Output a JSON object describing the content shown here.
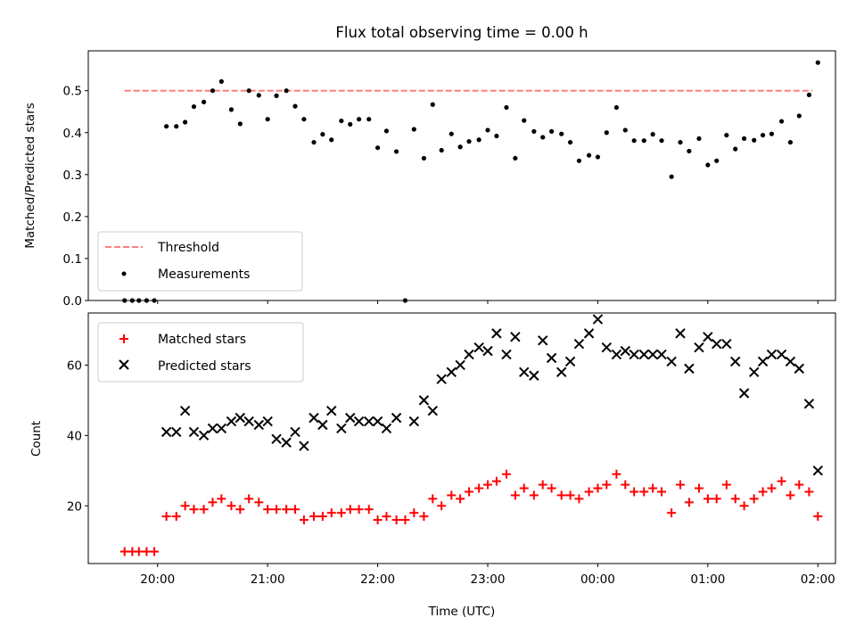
{
  "chart_data": [
    {
      "type": "scatter",
      "title": "Flux total observing time = 0.00 h",
      "xlabel": "",
      "ylabel": "Matched/Predicted stars",
      "ylim": [
        0,
        0.595
      ],
      "yticks": [
        0.0,
        0.1,
        0.2,
        0.3,
        0.4,
        0.5
      ],
      "ytick_labels": [
        "0.0",
        "0.1",
        "0.2",
        "0.3",
        "0.4",
        "0.5"
      ],
      "legend_position": "lower-left",
      "threshold": {
        "name": "Threshold",
        "value": 0.5,
        "x_start": 19.7,
        "x_end": 25.95,
        "color": "#ff7f7f"
      },
      "series": [
        {
          "name": "Measurements",
          "color": "#000000",
          "x": [
            19.7,
            19.77,
            19.83,
            19.9,
            19.97,
            20.08,
            20.17,
            20.25,
            20.33,
            20.42,
            20.5,
            20.58,
            20.67,
            20.75,
            20.83,
            20.92,
            21.0,
            21.08,
            21.17,
            21.25,
            21.33,
            21.42,
            21.5,
            21.58,
            21.67,
            21.75,
            21.83,
            21.92,
            22.0,
            22.08,
            22.17,
            22.25,
            22.33,
            22.42,
            22.5,
            22.58,
            22.67,
            22.75,
            22.83,
            22.92,
            23.0,
            23.08,
            23.17,
            23.25,
            23.33,
            23.42,
            23.5,
            23.58,
            23.67,
            23.75,
            23.83,
            23.92,
            24.0,
            24.08,
            24.17,
            24.25,
            24.33,
            24.42,
            24.5,
            24.58,
            24.67,
            24.75,
            24.83,
            24.92,
            25.0,
            25.08,
            25.17,
            25.25,
            25.33,
            25.42,
            25.5,
            25.58,
            25.67,
            25.75,
            25.83,
            25.92,
            26.0
          ],
          "y": [
            0.0,
            0.0,
            0.0,
            0.0,
            0.0,
            0.415,
            0.415,
            0.425,
            0.462,
            0.473,
            0.5,
            0.522,
            0.455,
            0.421,
            0.5,
            0.489,
            0.432,
            0.488,
            0.5,
            0.463,
            0.432,
            0.377,
            0.396,
            0.383,
            0.428,
            0.42,
            0.432,
            0.432,
            0.364,
            0.404,
            0.355,
            0.0,
            0.408,
            0.339,
            0.467,
            0.358,
            0.397,
            0.366,
            0.379,
            0.383,
            0.406,
            0.392,
            0.46,
            0.339,
            0.429,
            0.403,
            0.389,
            0.403,
            0.397,
            0.377,
            0.333,
            0.346,
            0.342,
            0.4,
            0.46,
            0.406,
            0.381,
            0.381,
            0.396,
            0.381,
            0.295,
            0.377,
            0.356,
            0.386,
            0.323,
            0.333,
            0.394,
            0.361,
            0.386,
            0.382,
            0.394,
            0.397,
            0.427,
            0.377,
            0.44,
            0.49,
            0.567
          ]
        }
      ]
    },
    {
      "type": "scatter",
      "title": "",
      "xlabel": "Time (UTC)",
      "ylabel": "Count",
      "xlim": [
        19.37,
        26.16
      ],
      "ylim": [
        3.6,
        74.8
      ],
      "yticks": [
        20,
        40,
        60
      ],
      "ytick_labels": [
        "20",
        "40",
        "60"
      ],
      "xticks": [
        20,
        21,
        22,
        23,
        24,
        25,
        26
      ],
      "xtick_labels": [
        "20:00",
        "21:00",
        "22:00",
        "23:00",
        "00:00",
        "01:00",
        "02:00"
      ],
      "legend_position": "top-left",
      "series": [
        {
          "name": "Matched stars",
          "color": "#ff0000",
          "marker": "plus",
          "x": [
            19.7,
            19.77,
            19.83,
            19.9,
            19.97,
            20.08,
            20.17,
            20.25,
            20.33,
            20.42,
            20.5,
            20.58,
            20.67,
            20.75,
            20.83,
            20.92,
            21.0,
            21.08,
            21.17,
            21.25,
            21.33,
            21.42,
            21.5,
            21.58,
            21.67,
            21.75,
            21.83,
            21.92,
            22.0,
            22.08,
            22.17,
            22.25,
            22.33,
            22.42,
            22.5,
            22.58,
            22.67,
            22.75,
            22.83,
            22.92,
            23.0,
            23.08,
            23.17,
            23.25,
            23.33,
            23.42,
            23.5,
            23.58,
            23.67,
            23.75,
            23.83,
            23.92,
            24.0,
            24.08,
            24.17,
            24.25,
            24.33,
            24.42,
            24.5,
            24.58,
            24.67,
            24.75,
            24.83,
            24.92,
            25.0,
            25.08,
            25.17,
            25.25,
            25.33,
            25.42,
            25.5,
            25.58,
            25.67,
            25.75,
            25.83,
            25.92,
            26.0
          ],
          "y": [
            7,
            7,
            7,
            7,
            7,
            17,
            17,
            20,
            19,
            19,
            21,
            22,
            20,
            19,
            22,
            21,
            19,
            19,
            19,
            19,
            16,
            17,
            17,
            18,
            18,
            19,
            19,
            19,
            16,
            17,
            16,
            16,
            18,
            17,
            22,
            20,
            23,
            22,
            24,
            25,
            26,
            27,
            29,
            23,
            25,
            23,
            26,
            25,
            23,
            23,
            22,
            24,
            25,
            26,
            29,
            26,
            24,
            24,
            25,
            24,
            18,
            26,
            21,
            25,
            22,
            22,
            26,
            22,
            20,
            22,
            24,
            25,
            27,
            23,
            26,
            24,
            17
          ]
        },
        {
          "name": "Predicted stars",
          "color": "#000000",
          "marker": "x",
          "x": [
            20.08,
            20.17,
            20.25,
            20.33,
            20.42,
            20.5,
            20.58,
            20.67,
            20.75,
            20.83,
            20.92,
            21.0,
            21.08,
            21.17,
            21.25,
            21.33,
            21.42,
            21.5,
            21.58,
            21.67,
            21.75,
            21.83,
            21.92,
            22.0,
            22.08,
            22.17,
            22.33,
            22.42,
            22.5,
            22.58,
            22.67,
            22.75,
            22.83,
            22.92,
            23.0,
            23.08,
            23.17,
            23.25,
            23.33,
            23.42,
            23.5,
            23.58,
            23.67,
            23.75,
            23.83,
            23.92,
            24.0,
            24.08,
            24.17,
            24.25,
            24.33,
            24.42,
            24.5,
            24.58,
            24.67,
            24.75,
            24.83,
            24.92,
            25.0,
            25.08,
            25.17,
            25.25,
            25.33,
            25.42,
            25.5,
            25.58,
            25.67,
            25.75,
            25.83,
            25.92,
            26.0
          ],
          "y": [
            41,
            41,
            47,
            41,
            40,
            42,
            42,
            44,
            45,
            44,
            43,
            44,
            39,
            38,
            41,
            37,
            45,
            43,
            47,
            42,
            45,
            44,
            44,
            44,
            42,
            45,
            44,
            50,
            47,
            56,
            58,
            60,
            63,
            65,
            64,
            69,
            63,
            68,
            58,
            57,
            67,
            62,
            58,
            61,
            66,
            69,
            73,
            65,
            63,
            64,
            63,
            63,
            63,
            63,
            61,
            69,
            59,
            65,
            68,
            66,
            66,
            61,
            52,
            58,
            61,
            63,
            63,
            61,
            59,
            49,
            30
          ]
        }
      ]
    }
  ]
}
